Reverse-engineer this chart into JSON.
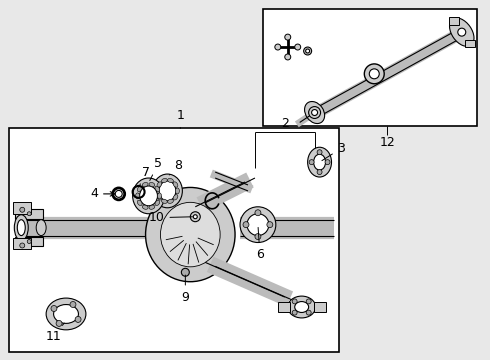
{
  "bg_color": "#e8e8e8",
  "white": "#ffffff",
  "black": "#000000",
  "gray1": "#cccccc",
  "gray2": "#aaaaaa",
  "gray3": "#888888",
  "gray4": "#bbbbbb",
  "gray5": "#dddddd"
}
